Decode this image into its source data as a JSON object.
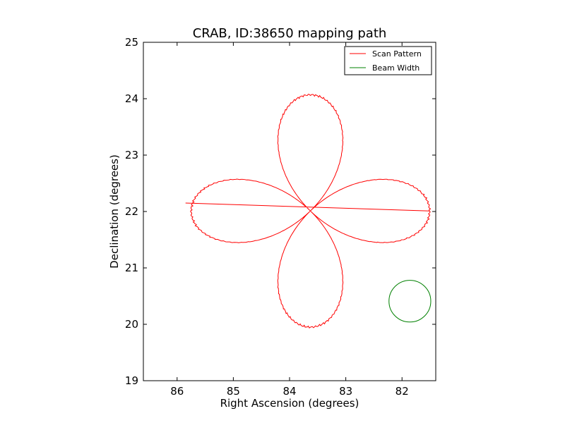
{
  "chart_data": {
    "type": "line",
    "title": "CRAB, ID:38650 mapping path",
    "xlabel": "Right Ascension (degrees)",
    "ylabel": "Declination (degrees)",
    "xlim": [
      86.6,
      81.4
    ],
    "ylim": [
      19,
      25
    ],
    "x_reversed": true,
    "xticks": [
      86,
      85,
      84,
      83,
      82
    ],
    "xtick_labels": [
      "86",
      "85",
      "84",
      "83",
      "82"
    ],
    "yticks": [
      19,
      20,
      21,
      22,
      23,
      24,
      25
    ],
    "ytick_labels": [
      "19",
      "20",
      "21",
      "22",
      "23",
      "24",
      "25"
    ],
    "grid": false,
    "legend_position": "top-right",
    "series": [
      {
        "name": "Scan Pattern",
        "color": "#ff0000",
        "shape": "four-petal rose curve centered on the Crab position",
        "center": [
          83.63,
          22.01
        ],
        "radius_ra": 2.12,
        "radius_dec": 2.06,
        "path_start": [
          85.85,
          22.15
        ]
      },
      {
        "name": "Beam Width",
        "color": "#008000",
        "shape": "circle",
        "center": [
          81.86,
          20.41
        ],
        "radius_deg": 0.37
      }
    ]
  }
}
